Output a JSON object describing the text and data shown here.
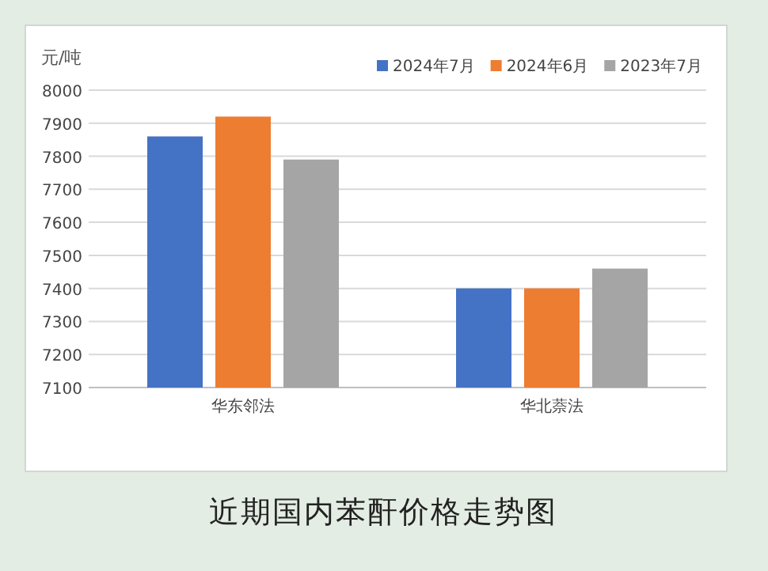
{
  "chart_data": {
    "type": "bar",
    "title": "近期国内苯酐价格走势图",
    "ylabel": "元/吨",
    "categories": [
      "华东邻法",
      "华北萘法"
    ],
    "series": [
      {
        "name": "2024年7月",
        "color": "#4472c4",
        "values": [
          7860,
          7400
        ]
      },
      {
        "name": "2024年6月",
        "color": "#ed7d31",
        "values": [
          7920,
          7400
        ]
      },
      {
        "name": "2023年7月",
        "color": "#a5a5a5",
        "values": [
          7790,
          7460
        ]
      }
    ],
    "ylim": [
      7100,
      8000
    ],
    "yticks": [
      7100,
      7200,
      7300,
      7400,
      7500,
      7600,
      7700,
      7800,
      7900,
      8000
    ],
    "grid": "y",
    "legend": "top right"
  }
}
